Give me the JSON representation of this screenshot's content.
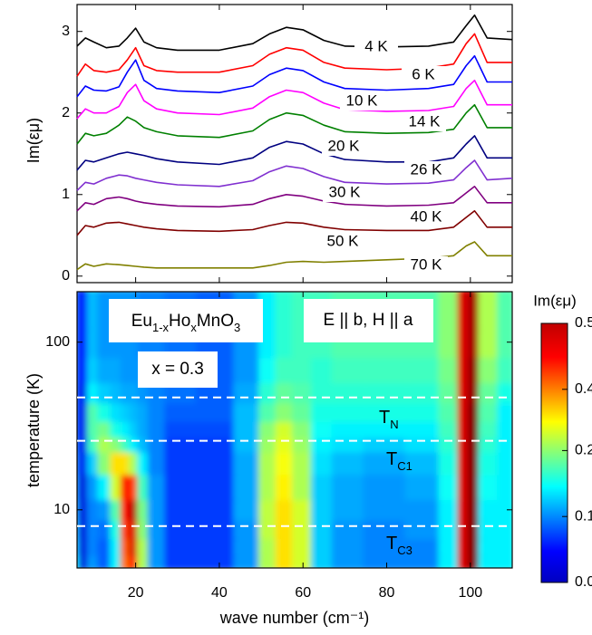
{
  "chart_data": [
    {
      "type": "line",
      "ylabel": "Im(εμ)",
      "x": [
        6,
        8,
        10,
        13,
        16,
        18,
        20,
        22,
        25,
        30,
        40,
        48,
        52,
        56,
        60,
        65,
        70,
        80,
        90,
        96,
        99,
        101,
        104,
        110
      ],
      "xlim": [
        6,
        110
      ],
      "xticks": [
        20,
        40,
        60,
        80,
        100
      ],
      "ylim": [
        -0.08,
        3.33
      ],
      "yticks": [
        0,
        1,
        2,
        3
      ],
      "series": [
        {
          "name": "4 K",
          "color": "#000000",
          "values": [
            2.82,
            2.92,
            2.87,
            2.8,
            2.82,
            2.92,
            3.04,
            2.87,
            2.8,
            2.77,
            2.77,
            2.85,
            2.97,
            3.05,
            3.02,
            2.89,
            2.82,
            2.81,
            2.82,
            2.87,
            3.07,
            3.2,
            2.92,
            2.9
          ]
        },
        {
          "name": "6 K",
          "color": "#ff0000",
          "values": [
            2.45,
            2.6,
            2.52,
            2.5,
            2.53,
            2.65,
            2.8,
            2.58,
            2.52,
            2.5,
            2.5,
            2.58,
            2.72,
            2.8,
            2.77,
            2.62,
            2.55,
            2.53,
            2.55,
            2.6,
            2.85,
            2.97,
            2.62,
            2.62
          ]
        },
        {
          "name": "10 K",
          "color": "#0000ff",
          "values": [
            2.2,
            2.33,
            2.28,
            2.27,
            2.32,
            2.5,
            2.65,
            2.4,
            2.3,
            2.27,
            2.25,
            2.33,
            2.47,
            2.55,
            2.52,
            2.38,
            2.3,
            2.28,
            2.3,
            2.35,
            2.58,
            2.7,
            2.38,
            2.38
          ]
        },
        {
          "name": "14 K",
          "color": "#ff00ff",
          "values": [
            1.93,
            2.05,
            2.0,
            2.0,
            2.08,
            2.25,
            2.35,
            2.15,
            2.05,
            2.0,
            1.98,
            2.06,
            2.2,
            2.28,
            2.25,
            2.12,
            2.04,
            2.02,
            2.03,
            2.08,
            2.3,
            2.4,
            2.1,
            2.1
          ]
        },
        {
          "name": "20 K",
          "color": "#008000",
          "values": [
            1.62,
            1.75,
            1.72,
            1.75,
            1.85,
            1.95,
            1.9,
            1.82,
            1.77,
            1.72,
            1.7,
            1.78,
            1.92,
            2.0,
            1.97,
            1.85,
            1.77,
            1.75,
            1.76,
            1.8,
            2.0,
            2.1,
            1.82,
            1.82
          ]
        },
        {
          "name": "26 K",
          "color": "#000080",
          "values": [
            1.3,
            1.42,
            1.4,
            1.45,
            1.5,
            1.52,
            1.5,
            1.48,
            1.44,
            1.4,
            1.37,
            1.45,
            1.58,
            1.65,
            1.62,
            1.5,
            1.43,
            1.4,
            1.4,
            1.45,
            1.62,
            1.72,
            1.45,
            1.45
          ]
        },
        {
          "name": "30 K",
          "color": "#8030d0",
          "values": [
            1.05,
            1.15,
            1.13,
            1.2,
            1.24,
            1.23,
            1.2,
            1.18,
            1.15,
            1.12,
            1.1,
            1.17,
            1.28,
            1.35,
            1.32,
            1.22,
            1.15,
            1.13,
            1.14,
            1.18,
            1.33,
            1.42,
            1.18,
            1.2
          ]
        },
        {
          "name": "40 K",
          "color": "#800080",
          "values": [
            0.8,
            0.9,
            0.88,
            0.95,
            0.97,
            0.95,
            0.92,
            0.9,
            0.88,
            0.86,
            0.85,
            0.88,
            0.95,
            1.0,
            0.98,
            0.92,
            0.88,
            0.86,
            0.87,
            0.9,
            1.02,
            1.1,
            0.9,
            0.9
          ]
        },
        {
          "name": "50 K",
          "color": "#800000",
          "values": [
            0.5,
            0.62,
            0.6,
            0.65,
            0.66,
            0.64,
            0.62,
            0.6,
            0.58,
            0.56,
            0.55,
            0.57,
            0.62,
            0.66,
            0.65,
            0.6,
            0.57,
            0.56,
            0.56,
            0.6,
            0.72,
            0.8,
            0.6,
            0.6
          ]
        },
        {
          "name": "70 K",
          "color": "#808000",
          "values": [
            0.08,
            0.15,
            0.12,
            0.15,
            0.14,
            0.13,
            0.12,
            0.11,
            0.1,
            0.1,
            0.1,
            0.1,
            0.13,
            0.17,
            0.18,
            0.17,
            0.18,
            0.2,
            0.22,
            0.25,
            0.37,
            0.42,
            0.25,
            0.25
          ]
        }
      ]
    },
    {
      "type": "heatmap",
      "xlabel": "wave number (cm⁻¹)",
      "ylabel": "temperature (K)",
      "log_y": true,
      "x": [
        6,
        8,
        10,
        13,
        16,
        18,
        20,
        22,
        25,
        30,
        40,
        48,
        52,
        56,
        60,
        65,
        70,
        80,
        90,
        96,
        99,
        101,
        104,
        110
      ],
      "y": [
        5,
        6,
        8,
        10,
        14,
        20,
        26,
        30,
        40,
        50,
        70,
        100,
        150
      ],
      "xlim": [
        6,
        110
      ],
      "xticks": [
        20,
        40,
        60,
        80,
        100
      ],
      "ylim": [
        4.5,
        200
      ],
      "yticks": [
        10,
        100
      ],
      "zlabel": "Im(εμ)",
      "zlim": [
        0,
        0.55
      ],
      "zticks": [
        {
          "value": 0,
          "label": "0.00"
        },
        0.14,
        0.28,
        0.41,
        0.55
      ],
      "z": [
        [
          0.2,
          0.05,
          0.15,
          0.12,
          0.2,
          0.42,
          0.48,
          0.3,
          0.15,
          0.1,
          0.1,
          0.15,
          0.3,
          0.36,
          0.32,
          0.18,
          0.15,
          0.14,
          0.14,
          0.2,
          0.5,
          0.55,
          0.2,
          0.2
        ],
        [
          0.18,
          0.05,
          0.14,
          0.12,
          0.2,
          0.43,
          0.5,
          0.3,
          0.15,
          0.1,
          0.1,
          0.15,
          0.3,
          0.36,
          0.32,
          0.18,
          0.15,
          0.14,
          0.14,
          0.2,
          0.5,
          0.55,
          0.2,
          0.2
        ],
        [
          0.17,
          0.05,
          0.14,
          0.13,
          0.22,
          0.45,
          0.5,
          0.28,
          0.15,
          0.1,
          0.1,
          0.15,
          0.31,
          0.36,
          0.32,
          0.18,
          0.15,
          0.14,
          0.15,
          0.2,
          0.5,
          0.55,
          0.2,
          0.2
        ],
        [
          0.16,
          0.05,
          0.14,
          0.15,
          0.25,
          0.47,
          0.52,
          0.27,
          0.15,
          0.1,
          0.1,
          0.16,
          0.31,
          0.36,
          0.32,
          0.18,
          0.16,
          0.15,
          0.15,
          0.2,
          0.5,
          0.55,
          0.2,
          0.2
        ],
        [
          0.15,
          0.05,
          0.15,
          0.2,
          0.32,
          0.48,
          0.45,
          0.24,
          0.15,
          0.1,
          0.1,
          0.16,
          0.3,
          0.35,
          0.3,
          0.18,
          0.16,
          0.15,
          0.16,
          0.21,
          0.5,
          0.55,
          0.21,
          0.2
        ],
        [
          0.14,
          0.06,
          0.18,
          0.28,
          0.36,
          0.36,
          0.3,
          0.2,
          0.14,
          0.1,
          0.1,
          0.16,
          0.3,
          0.34,
          0.3,
          0.19,
          0.17,
          0.16,
          0.17,
          0.22,
          0.5,
          0.55,
          0.22,
          0.2
        ],
        [
          0.13,
          0.06,
          0.24,
          0.3,
          0.28,
          0.24,
          0.2,
          0.17,
          0.14,
          0.1,
          0.1,
          0.17,
          0.29,
          0.33,
          0.29,
          0.2,
          0.19,
          0.18,
          0.19,
          0.23,
          0.5,
          0.55,
          0.23,
          0.2
        ],
        [
          0.12,
          0.06,
          0.25,
          0.27,
          0.22,
          0.2,
          0.18,
          0.16,
          0.14,
          0.11,
          0.11,
          0.17,
          0.28,
          0.32,
          0.28,
          0.21,
          0.2,
          0.2,
          0.2,
          0.24,
          0.5,
          0.55,
          0.24,
          0.2
        ],
        [
          0.12,
          0.06,
          0.25,
          0.22,
          0.19,
          0.18,
          0.17,
          0.16,
          0.14,
          0.12,
          0.12,
          0.17,
          0.25,
          0.28,
          0.26,
          0.22,
          0.22,
          0.22,
          0.22,
          0.25,
          0.5,
          0.55,
          0.25,
          0.2
        ],
        [
          0.12,
          0.06,
          0.2,
          0.18,
          0.17,
          0.16,
          0.16,
          0.15,
          0.14,
          0.13,
          0.12,
          0.16,
          0.23,
          0.26,
          0.25,
          0.23,
          0.23,
          0.23,
          0.23,
          0.26,
          0.5,
          0.54,
          0.26,
          0.22
        ],
        [
          0.12,
          0.07,
          0.18,
          0.16,
          0.16,
          0.15,
          0.15,
          0.15,
          0.14,
          0.13,
          0.12,
          0.15,
          0.21,
          0.24,
          0.24,
          0.23,
          0.24,
          0.24,
          0.24,
          0.27,
          0.5,
          0.54,
          0.28,
          0.24
        ],
        [
          0.12,
          0.07,
          0.17,
          0.15,
          0.15,
          0.15,
          0.15,
          0.14,
          0.14,
          0.13,
          0.12,
          0.15,
          0.2,
          0.23,
          0.24,
          0.24,
          0.25,
          0.25,
          0.25,
          0.28,
          0.5,
          0.53,
          0.3,
          0.25
        ],
        [
          0.12,
          0.07,
          0.17,
          0.15,
          0.15,
          0.15,
          0.15,
          0.14,
          0.14,
          0.13,
          0.12,
          0.15,
          0.2,
          0.23,
          0.24,
          0.24,
          0.25,
          0.25,
          0.25,
          0.28,
          0.5,
          0.53,
          0.3,
          0.25
        ]
      ],
      "formula": [
        "Eu",
        "1-x",
        "Ho",
        "x",
        "MnO",
        "3"
      ],
      "composition": "x = 0.3",
      "geometry": "E || b, H || a",
      "transitions": [
        {
          "label": "T",
          "sub": "N",
          "y": 46.8
        },
        {
          "label": "T",
          "sub": "C1",
          "y": 25.8
        },
        {
          "label": "T",
          "sub": "C3",
          "y": 8.0
        }
      ]
    }
  ]
}
